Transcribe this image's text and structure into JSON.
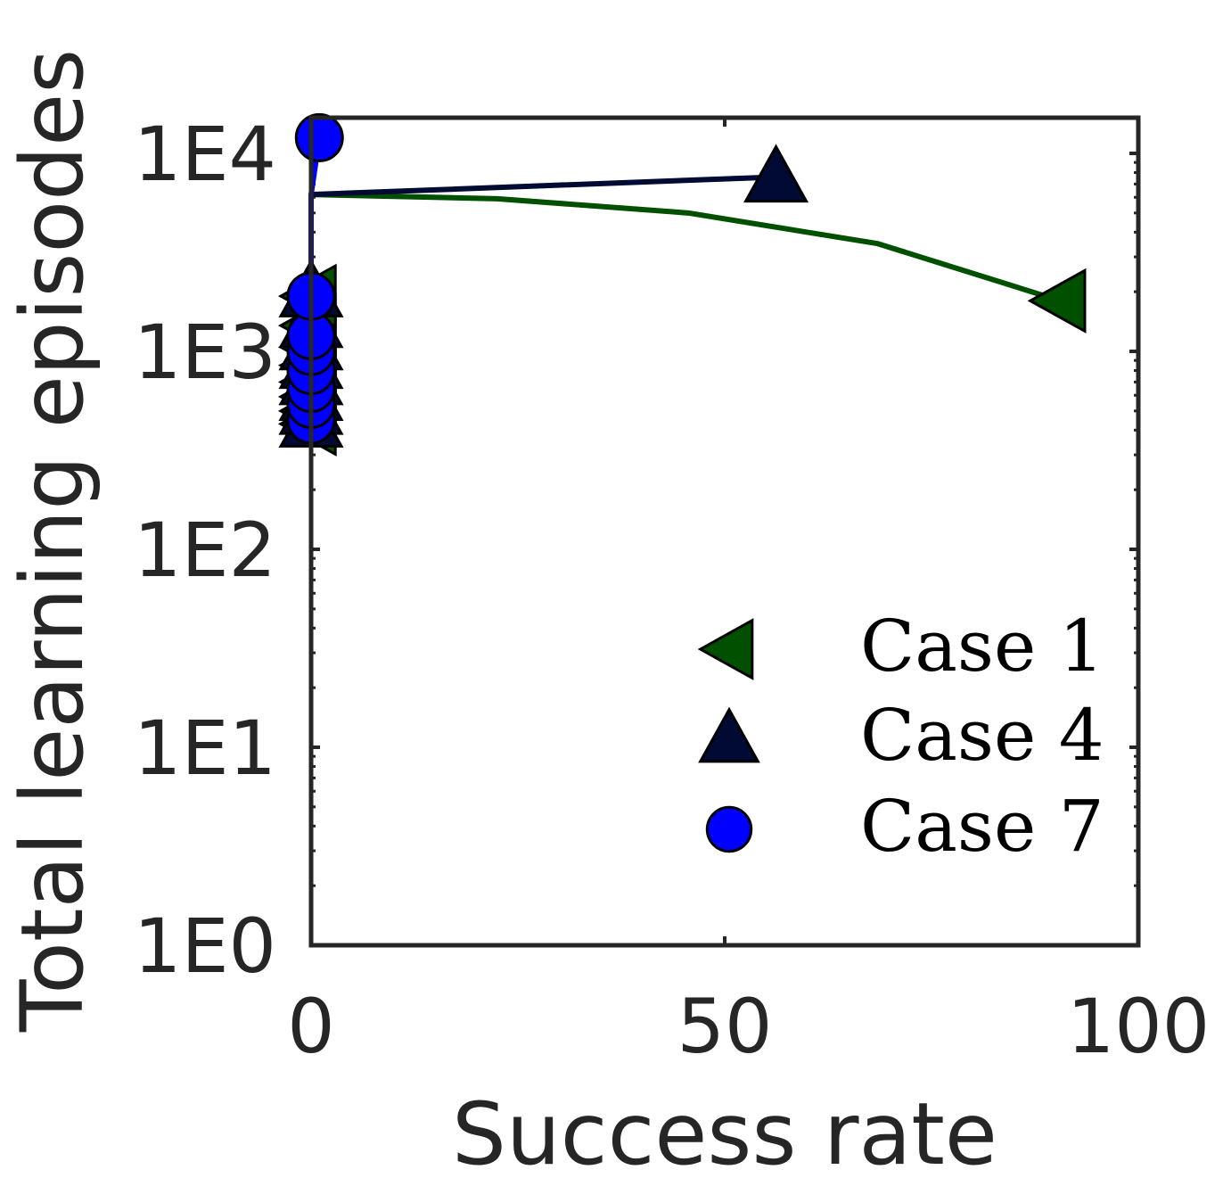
{
  "chart_data": {
    "type": "line",
    "xlabel": "Success rate",
    "ylabel": "Total learning episodes",
    "xlim": [
      0,
      100
    ],
    "ylim": [
      1,
      10000
    ],
    "yscale": "log",
    "xticks": [
      0,
      50,
      100
    ],
    "xtick_labels": [
      "0",
      "50",
      "100"
    ],
    "yticks": [
      1,
      10,
      100,
      1000,
      10000
    ],
    "ytick_labels": [
      "1E0",
      "1E1",
      "1E2",
      "1E3",
      "1E4"
    ],
    "grid": false,
    "legend_position": "lower-right",
    "colors": {
      "case1": "#005000",
      "case4": "#000a32",
      "case7": "#0000ff",
      "axis": "#262626"
    },
    "series": [
      {
        "name": "Case 1",
        "marker": "triangle-left",
        "x": [
          0,
          0,
          0,
          0,
          0,
          0,
          0,
          0,
          0,
          22.5,
          45.6,
          68.5,
          90.6
        ],
        "y": [
          430,
          500,
          590,
          700,
          850,
          1050,
          1350,
          1900,
          6200,
          5900,
          5000,
          3500,
          1800
        ],
        "marker_indices": [
          0,
          1,
          2,
          3,
          4,
          5,
          6,
          7,
          12
        ]
      },
      {
        "name": "Case 4",
        "marker": "triangle-up",
        "x": [
          0,
          0,
          0,
          0,
          0,
          0,
          0,
          0,
          0,
          56.2
        ],
        "y": [
          440,
          510,
          600,
          720,
          870,
          1080,
          1400,
          2000,
          6200,
          7600
        ],
        "marker_indices": [
          0,
          1,
          2,
          3,
          4,
          5,
          6,
          7,
          9
        ]
      },
      {
        "name": "Case 7",
        "marker": "circle",
        "x": [
          0,
          0,
          0,
          0,
          0,
          0,
          0,
          0,
          1.0
        ],
        "y": [
          450,
          540,
          650,
          800,
          1000,
          1200,
          1900,
          6200,
          12000
        ],
        "marker_indices": [
          0,
          1,
          2,
          3,
          4,
          5,
          6,
          8
        ]
      }
    ]
  }
}
